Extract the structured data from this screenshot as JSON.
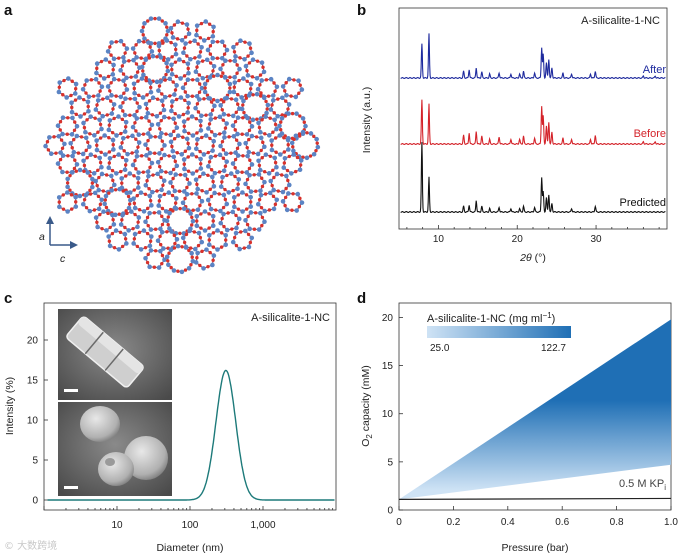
{
  "panel_a": {
    "label": "a",
    "axis_a": "a",
    "axis_c": "c",
    "image": "silicalite-1 framework structure viewed along b axis (Si blue, O red)",
    "colors": {
      "si": "#5b84c4",
      "o": "#d8312b",
      "bond": "#8a4a6a"
    }
  },
  "chart_data": [
    {
      "panel": "b",
      "type": "line",
      "title": "A-silicalite-1-NC",
      "xlabel": "2θ (°)",
      "ylabel": "Intensity (a.u.)",
      "xlim": [
        5,
        39
      ],
      "xticks": [
        "10",
        "20",
        "30"
      ],
      "xtick_values": [
        10,
        20,
        30
      ],
      "series": [
        {
          "name": "After",
          "color": "#1f2b9e",
          "peaks": [
            [
              7.9,
              1.0
            ],
            [
              8.8,
              1.3
            ],
            [
              13.2,
              0.2
            ],
            [
              13.9,
              0.25
            ],
            [
              14.8,
              0.3
            ],
            [
              15.5,
              0.18
            ],
            [
              16.5,
              0.12
            ],
            [
              17.7,
              0.15
            ],
            [
              19.2,
              0.12
            ],
            [
              20.3,
              0.12
            ],
            [
              20.8,
              0.2
            ],
            [
              22.2,
              0.15
            ],
            [
              23.1,
              0.9
            ],
            [
              23.3,
              0.7
            ],
            [
              23.7,
              0.45
            ],
            [
              24.0,
              0.55
            ],
            [
              24.4,
              0.3
            ],
            [
              25.8,
              0.15
            ],
            [
              26.9,
              0.12
            ],
            [
              29.3,
              0.12
            ],
            [
              29.9,
              0.2
            ],
            [
              36.0,
              0.06
            ],
            [
              37.5,
              0.06
            ]
          ]
        },
        {
          "name": "Before",
          "color": "#d4232a",
          "peaks": [
            [
              7.9,
              1.1
            ],
            [
              8.8,
              1.0
            ],
            [
              13.2,
              0.22
            ],
            [
              13.9,
              0.28
            ],
            [
              14.8,
              0.32
            ],
            [
              15.5,
              0.2
            ],
            [
              16.5,
              0.12
            ],
            [
              17.7,
              0.18
            ],
            [
              19.2,
              0.12
            ],
            [
              20.3,
              0.12
            ],
            [
              20.8,
              0.2
            ],
            [
              22.2,
              0.15
            ],
            [
              23.1,
              0.95
            ],
            [
              23.3,
              0.7
            ],
            [
              23.7,
              0.45
            ],
            [
              24.0,
              0.55
            ],
            [
              24.4,
              0.3
            ],
            [
              25.8,
              0.15
            ],
            [
              26.9,
              0.12
            ],
            [
              29.3,
              0.12
            ],
            [
              29.9,
              0.22
            ],
            [
              36.0,
              0.06
            ],
            [
              37.5,
              0.06
            ]
          ]
        },
        {
          "name": "Predicted",
          "color": "#111111",
          "peaks": [
            [
              7.9,
              1.2
            ],
            [
              8.8,
              0.6
            ],
            [
              13.2,
              0.1
            ],
            [
              13.9,
              0.12
            ],
            [
              14.8,
              0.2
            ],
            [
              15.5,
              0.1
            ],
            [
              16.5,
              0.06
            ],
            [
              17.7,
              0.08
            ],
            [
              19.2,
              0.06
            ],
            [
              20.3,
              0.06
            ],
            [
              20.8,
              0.1
            ],
            [
              22.2,
              0.08
            ],
            [
              23.1,
              0.6
            ],
            [
              23.3,
              0.35
            ],
            [
              23.7,
              0.25
            ],
            [
              24.0,
              0.3
            ],
            [
              24.4,
              0.15
            ],
            [
              26.9,
              0.06
            ],
            [
              29.9,
              0.1
            ]
          ]
        }
      ]
    },
    {
      "panel": "c",
      "type": "line",
      "title": "A-silicalite-1-NC",
      "xlabel": "Diameter (nm)",
      "ylabel": "Intensity (%)",
      "xscale": "log",
      "xlim": [
        1,
        10000
      ],
      "ylim": [
        0,
        22
      ],
      "xticks": [
        "10",
        "100",
        "1,000"
      ],
      "xtick_values": [
        10,
        100,
        1000
      ],
      "yticks": [
        "0",
        "5",
        "10",
        "15",
        "20"
      ],
      "ytick_values": [
        0,
        5,
        10,
        15,
        20
      ],
      "color": "#1d7a7a",
      "peak_center_nm": 310,
      "peak_value": 16.2,
      "peak_log_sigma": 0.135,
      "inset": "SEM images of nanocrystals"
    },
    {
      "panel": "d",
      "type": "area",
      "xlabel": "Pressure (bar)",
      "ylabel": "O2 capacity (mM)",
      "ylabel_main": "O",
      "ylabel_sub": "2",
      "ylabel_rest": " capacity (mM)",
      "xlim": [
        0,
        1.0
      ],
      "ylim": [
        0,
        21.5
      ],
      "xticks": [
        "0",
        "0.2",
        "0.4",
        "0.6",
        "0.8",
        "1.0"
      ],
      "xtick_values": [
        0,
        0.2,
        0.4,
        0.6,
        0.8,
        1.0
      ],
      "yticks": [
        "0",
        "5",
        "10",
        "15",
        "20"
      ],
      "ytick_values": [
        0,
        5,
        10,
        15,
        20
      ],
      "intercept": 1.1,
      "upper_at_1bar": 19.8,
      "lower_at_1bar": 4.7,
      "baseline_at_1bar": 1.2,
      "baseline_label_main": "0.5 M KP",
      "baseline_label_sub": "i",
      "colorbar_title_main": "A-silicalite-1-NC (mg ml",
      "colorbar_title_sup": "−1",
      "colorbar_title_end": ")",
      "colorbar_min": "25.0",
      "colorbar_max": "122.7",
      "color_low": "#cfe3f5",
      "color_high": "#1f6fb5"
    }
  ],
  "labels": {
    "b": "b",
    "c": "c",
    "d": "d"
  },
  "watermark": "© 大数跨境"
}
